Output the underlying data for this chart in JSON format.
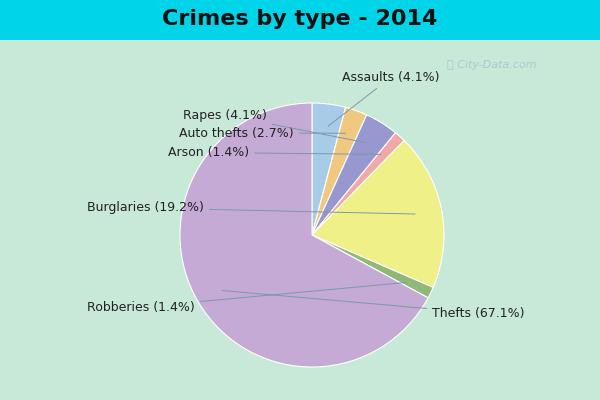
{
  "title": "Crimes by type - 2014",
  "slices": [
    {
      "label": "Thefts",
      "pct": 67.1,
      "color": "#c4aad4"
    },
    {
      "label": "Robberies",
      "pct": 1.4,
      "color": "#90b878"
    },
    {
      "label": "Burglaries",
      "pct": 19.2,
      "color": "#f0f088"
    },
    {
      "label": "Arson",
      "pct": 1.4,
      "color": "#f0a8a8"
    },
    {
      "label": "Rapes",
      "pct": 4.1,
      "color": "#9898d0"
    },
    {
      "label": "Auto thefts",
      "pct": 2.7,
      "color": "#f0c880"
    },
    {
      "label": "Assaults",
      "pct": 4.1,
      "color": "#a8cce8"
    }
  ],
  "startangle": 90,
  "background_top": "#00d4e8",
  "background_main_start": "#c8e8d8",
  "background_main_end": "#e8f4f0",
  "title_fontsize": 16,
  "label_fontsize": 9,
  "watermark": "City-Data.com",
  "label_positions": {
    "Thefts": [
      0.8,
      -0.52,
      "left"
    ],
    "Burglaries": [
      -0.72,
      0.18,
      "right"
    ],
    "Assaults": [
      0.2,
      1.05,
      "left"
    ],
    "Rapes": [
      -0.3,
      0.8,
      "right"
    ],
    "Auto thefts": [
      -0.12,
      0.68,
      "right"
    ],
    "Arson": [
      -0.42,
      0.55,
      "right"
    ],
    "Robberies": [
      -0.78,
      -0.48,
      "right"
    ]
  }
}
